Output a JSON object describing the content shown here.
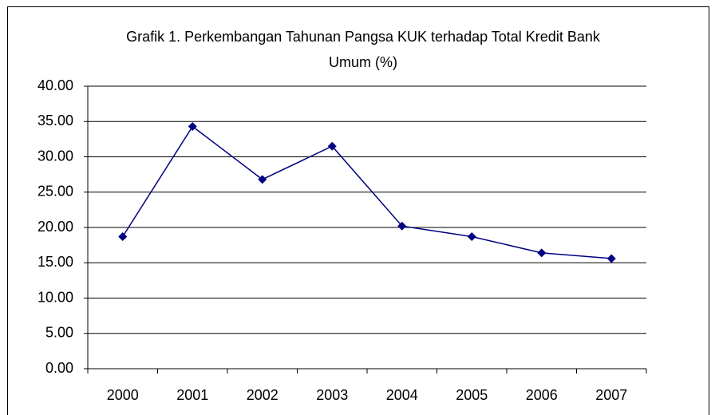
{
  "chart_data": {
    "type": "line",
    "title": "Grafik 1. Perkembangan Tahunan Pangsa KUK terhadap Total Kredit Bank Umum (%)",
    "categories": [
      "2000",
      "2001",
      "2002",
      "2003",
      "2004",
      "2005",
      "2006",
      "2007"
    ],
    "series": [
      {
        "color": "#000080",
        "values": [
          18.7,
          34.3,
          26.8,
          31.5,
          20.2,
          18.7,
          16.4,
          15.6
        ]
      }
    ],
    "ylim": [
      0,
      40
    ],
    "yticks": [
      {
        "value": 0,
        "label": "0.00"
      },
      {
        "value": 5,
        "label": "5.00"
      },
      {
        "value": 10,
        "label": "10.00"
      },
      {
        "value": 15,
        "label": "15.00"
      },
      {
        "value": 20,
        "label": "20.00"
      },
      {
        "value": 25,
        "label": "25.00"
      },
      {
        "value": 30,
        "label": "30.00"
      },
      {
        "value": 35,
        "label": "35.00"
      },
      {
        "value": 40,
        "label": "40.00"
      }
    ],
    "grid": true
  }
}
